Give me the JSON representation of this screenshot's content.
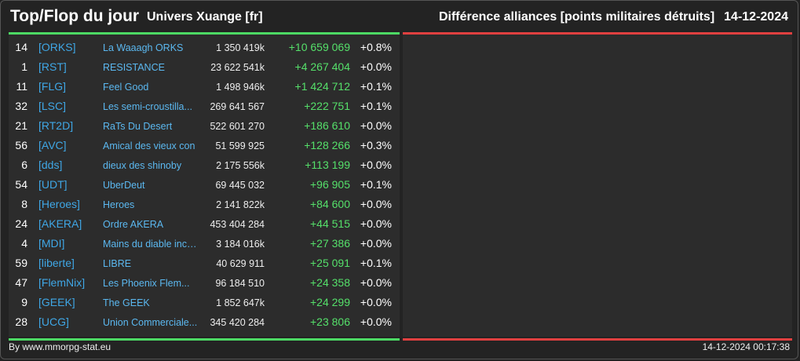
{
  "header": {
    "title": "Top/Flop du jour",
    "universe": "Univers Xuange [fr]",
    "ranking_title": "Différence alliances [points militaires détruits]",
    "date": "14-12-2024"
  },
  "colors": {
    "green": "#4cd964",
    "red": "#e04040",
    "tag": "#3fa7e6"
  },
  "rows": [
    {
      "rank": "14",
      "tag": "[ORKS]",
      "name": "La Waaagh ORKS",
      "points": "1 350 419k",
      "diff": "+10 659 069",
      "pct": "+0.8%"
    },
    {
      "rank": "1",
      "tag": "[RST]",
      "name": "RESISTANCE",
      "points": "23 622 541k",
      "diff": "+4 267 404",
      "pct": "+0.0%"
    },
    {
      "rank": "11",
      "tag": "[FLG]",
      "name": "Feel Good",
      "points": "1 498 946k",
      "diff": "+1 424 712",
      "pct": "+0.1%"
    },
    {
      "rank": "32",
      "tag": "[LSC]",
      "name": "Les semi-croustilla...",
      "points": "269 641 567",
      "diff": "+222 751",
      "pct": "+0.1%"
    },
    {
      "rank": "21",
      "tag": "[RT2D]",
      "name": "RaTs Du Desert",
      "points": "522 601 270",
      "diff": "+186 610",
      "pct": "+0.0%"
    },
    {
      "rank": "56",
      "tag": "[AVC]",
      "name": "Amical des vieux con",
      "points": "51 599 925",
      "diff": "+128 266",
      "pct": "+0.3%"
    },
    {
      "rank": "6",
      "tag": "[dds]",
      "name": "dieux des shinoby",
      "points": "2 175 556k",
      "diff": "+113 199",
      "pct": "+0.0%"
    },
    {
      "rank": "54",
      "tag": "[UDT]",
      "name": "UberDeut",
      "points": "69 445 032",
      "diff": "+96 905",
      "pct": "+0.1%"
    },
    {
      "rank": "8",
      "tag": "[Heroes]",
      "name": "Heroes",
      "points": "2 141 822k",
      "diff": "+84 600",
      "pct": "+0.0%"
    },
    {
      "rank": "24",
      "tag": "[AKERA]",
      "name": "Ordre AKERA",
      "points": "453 404 284",
      "diff": "+44 515",
      "pct": "+0.0%"
    },
    {
      "rank": "4",
      "tag": "[MDI]",
      "name": "Mains du diable inco...",
      "points": "3 184 016k",
      "diff": "+27 386",
      "pct": "+0.0%"
    },
    {
      "rank": "59",
      "tag": "[liberte]",
      "name": "LIBRE",
      "points": "40 629 911",
      "diff": "+25 091",
      "pct": "+0.1%"
    },
    {
      "rank": "47",
      "tag": "[FlemNix]",
      "name": "Les Phoenix Flem...",
      "points": "96 184 510",
      "diff": "+24 358",
      "pct": "+0.0%"
    },
    {
      "rank": "9",
      "tag": "[GEEK]",
      "name": "The GEEK",
      "points": "1 852 647k",
      "diff": "+24 299",
      "pct": "+0.0%"
    },
    {
      "rank": "28",
      "tag": "[UCG]",
      "name": "Union Commerciale...",
      "points": "345 420 284",
      "diff": "+23 806",
      "pct": "+0.0%"
    }
  ],
  "footer": {
    "source": "By www.mmorpg-stat.eu",
    "timestamp": "14-12-2024 00:17:38"
  }
}
